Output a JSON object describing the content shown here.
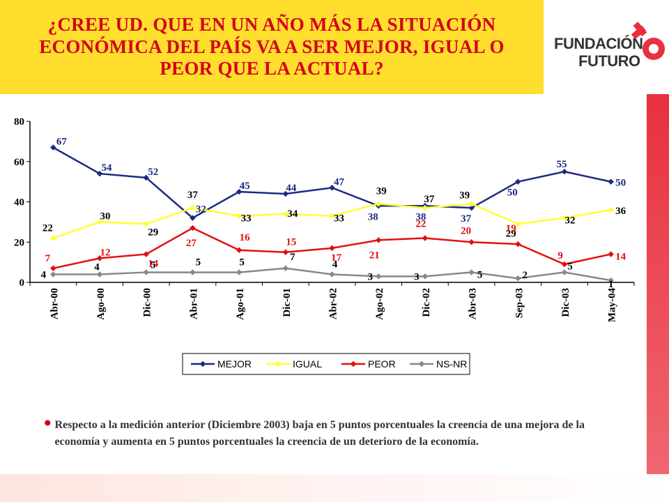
{
  "header": {
    "title": "¿CREE UD. QUE EN UN AÑO MÁS LA SITUACIÓN ECONÓMICA DEL PAÍS VA A SER MEJOR, IGUAL O PEOR QUE LA ACTUAL?",
    "background_color": "#ffde2e",
    "title_color": "#d4001a"
  },
  "logo": {
    "line1": "FUNDACIÓN",
    "line2": "FUTURO",
    "icon": "key-icon",
    "color": "#e8303e"
  },
  "chart_data": {
    "type": "line",
    "title": "",
    "xlabel": "",
    "ylabel": "",
    "ylim": [
      0,
      80
    ],
    "yticks": [
      0,
      20,
      40,
      60,
      80
    ],
    "grid": false,
    "legend_position": "bottom",
    "categories": [
      "Abr-00",
      "Ago-00",
      "Dic-00",
      "Abr-01",
      "Ago-01",
      "Dic-01",
      "Abr-02",
      "Ago-02",
      "Dic-02",
      "Abr-03",
      "Sep-03",
      "Dic-03",
      "May-04"
    ],
    "series": [
      {
        "name": "MEJOR",
        "color": "#1c2a80",
        "values": [
          67,
          54,
          52,
          32,
          45,
          44,
          47,
          38,
          38,
          37,
          50,
          55,
          50
        ]
      },
      {
        "name": "IGUAL",
        "color": "#ffff33",
        "values": [
          22,
          30,
          29,
          37,
          33,
          34,
          33,
          39,
          37,
          39,
          29,
          32,
          36
        ]
      },
      {
        "name": "PEOR",
        "color": "#e01010",
        "values": [
          7,
          12,
          14,
          27,
          16,
          15,
          17,
          21,
          22,
          20,
          19,
          9,
          14
        ]
      },
      {
        "name": "NS-NR",
        "color": "#888888",
        "values": [
          4,
          4,
          5,
          5,
          5,
          7,
          4,
          3,
          3,
          5,
          2,
          5,
          1
        ]
      }
    ]
  },
  "note": {
    "text": "Respecto a la medición anterior (Diciembre 2003) baja en 5 puntos porcentuales la creencia de una mejora de la economía y aumenta en 5 puntos porcentuales la creencia de un deterioro de la economía."
  }
}
